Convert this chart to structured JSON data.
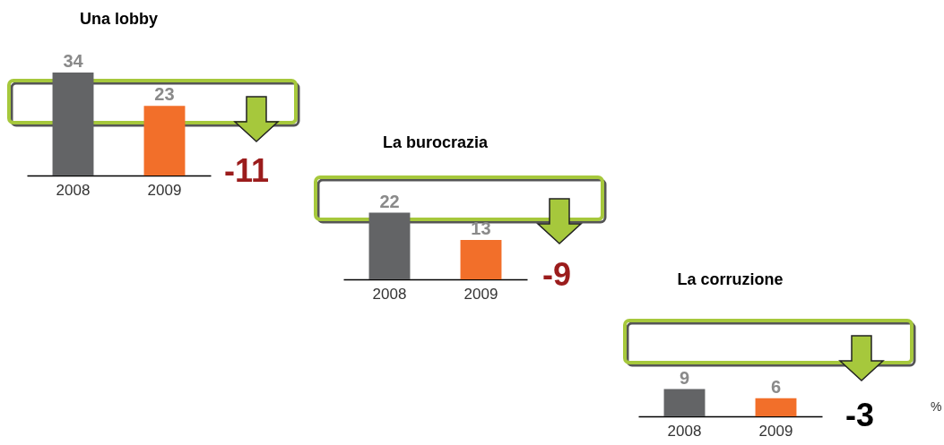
{
  "chart_data": [
    {
      "type": "bar",
      "title": "Una lobby",
      "categories": [
        "2008",
        "2009"
      ],
      "values": [
        34,
        23
      ],
      "colors": [
        "#636466",
        "#f26f2a"
      ],
      "data_labels": true,
      "tick_labels": "x",
      "annotations": [
        "-11"
      ]
    },
    {
      "type": "bar",
      "title": "La burocrazia",
      "categories": [
        "2008",
        "2009"
      ],
      "values": [
        22,
        13
      ],
      "colors": [
        "#636466",
        "#f26f2a"
      ],
      "data_labels": true,
      "tick_labels": "x",
      "annotations": [
        "-9"
      ]
    },
    {
      "type": "bar",
      "title": "La corruzione",
      "categories": [
        "2008",
        "2009"
      ],
      "values": [
        9,
        6
      ],
      "colors": [
        "#636466",
        "#f26f2a"
      ],
      "data_labels": true,
      "tick_labels": "x",
      "annotations": [
        "-3",
        "%"
      ]
    }
  ]
}
